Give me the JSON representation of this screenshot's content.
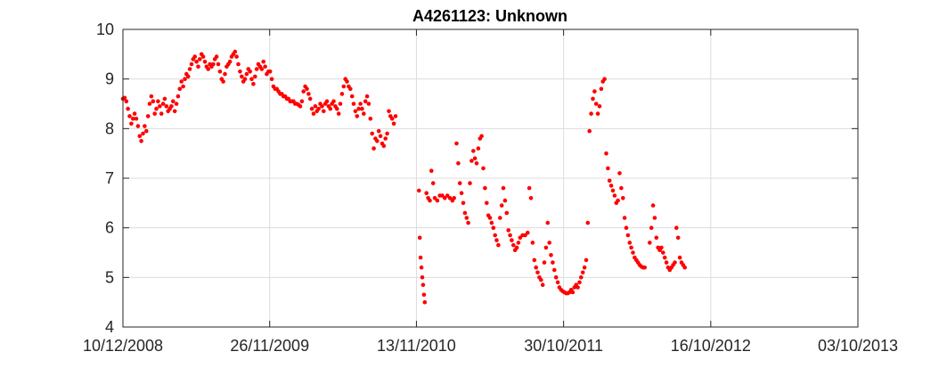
{
  "chart_data": {
    "type": "scatter",
    "title": "A4261123: Unknown",
    "xlabel": "",
    "ylabel": "",
    "x_tick_labels": [
      "10/12/2008",
      "26/11/2009",
      "13/11/2010",
      "30/10/2011",
      "16/10/2012",
      "03/10/2013"
    ],
    "xlim": [
      0,
      1758
    ],
    "x_ticks": [
      0,
      351,
      702,
      1054,
      1406,
      1758
    ],
    "x_units": "days since 10/12/2008",
    "ylim": [
      4,
      10
    ],
    "y_ticks": [
      4,
      5,
      6,
      7,
      8,
      9,
      10
    ],
    "y_tick_labels": [
      "4",
      "5",
      "6",
      "7",
      "8",
      "9",
      "10"
    ],
    "grid": true,
    "marker_color": "#ff0000",
    "series": [
      {
        "name": "A4261123",
        "points": [
          [
            0,
            8.6
          ],
          [
            4,
            8.62
          ],
          [
            8,
            8.55
          ],
          [
            12,
            8.4
          ],
          [
            16,
            8.25
          ],
          [
            20,
            8.1
          ],
          [
            24,
            8.2
          ],
          [
            28,
            8.3
          ],
          [
            32,
            8.2
          ],
          [
            36,
            8.05
          ],
          [
            40,
            7.85
          ],
          [
            44,
            7.75
          ],
          [
            48,
            7.9
          ],
          [
            52,
            8.05
          ],
          [
            56,
            7.95
          ],
          [
            60,
            8.25
          ],
          [
            64,
            8.5
          ],
          [
            68,
            8.65
          ],
          [
            72,
            8.55
          ],
          [
            76,
            8.3
          ],
          [
            80,
            8.4
          ],
          [
            84,
            8.55
          ],
          [
            88,
            8.45
          ],
          [
            92,
            8.3
          ],
          [
            96,
            8.5
          ],
          [
            100,
            8.6
          ],
          [
            104,
            8.45
          ],
          [
            108,
            8.35
          ],
          [
            112,
            8.4
          ],
          [
            116,
            8.45
          ],
          [
            120,
            8.55
          ],
          [
            124,
            8.35
          ],
          [
            128,
            8.5
          ],
          [
            132,
            8.65
          ],
          [
            136,
            8.8
          ],
          [
            140,
            8.95
          ],
          [
            144,
            8.85
          ],
          [
            148,
            9.0
          ],
          [
            152,
            9.1
          ],
          [
            156,
            9.05
          ],
          [
            160,
            9.2
          ],
          [
            164,
            9.3
          ],
          [
            168,
            9.4
          ],
          [
            172,
            9.45
          ],
          [
            176,
            9.35
          ],
          [
            180,
            9.25
          ],
          [
            184,
            9.4
          ],
          [
            188,
            9.5
          ],
          [
            192,
            9.45
          ],
          [
            196,
            9.35
          ],
          [
            200,
            9.25
          ],
          [
            204,
            9.2
          ],
          [
            208,
            9.3
          ],
          [
            212,
            9.25
          ],
          [
            216,
            9.3
          ],
          [
            220,
            9.4
          ],
          [
            224,
            9.45
          ],
          [
            228,
            9.3
          ],
          [
            232,
            9.15
          ],
          [
            236,
            9.0
          ],
          [
            240,
            8.95
          ],
          [
            244,
            9.1
          ],
          [
            248,
            9.25
          ],
          [
            252,
            9.3
          ],
          [
            256,
            9.35
          ],
          [
            260,
            9.45
          ],
          [
            264,
            9.5
          ],
          [
            268,
            9.55
          ],
          [
            272,
            9.45
          ],
          [
            276,
            9.3
          ],
          [
            280,
            9.15
          ],
          [
            284,
            9.05
          ],
          [
            288,
            8.95
          ],
          [
            292,
            9.0
          ],
          [
            296,
            9.1
          ],
          [
            300,
            9.2
          ],
          [
            304,
            9.15
          ],
          [
            308,
            9.0
          ],
          [
            312,
            8.9
          ],
          [
            316,
            9.05
          ],
          [
            320,
            9.2
          ],
          [
            324,
            9.3
          ],
          [
            328,
            9.25
          ],
          [
            332,
            9.2
          ],
          [
            336,
            9.35
          ],
          [
            340,
            9.25
          ],
          [
            344,
            9.1
          ],
          [
            348,
            9.15
          ],
          [
            352,
            9.15
          ],
          [
            356,
            9.0
          ],
          [
            360,
            8.85
          ],
          [
            364,
            8.8
          ],
          [
            368,
            8.8
          ],
          [
            372,
            8.75
          ],
          [
            376,
            8.7
          ],
          [
            380,
            8.7
          ],
          [
            384,
            8.65
          ],
          [
            388,
            8.65
          ],
          [
            392,
            8.6
          ],
          [
            396,
            8.6
          ],
          [
            400,
            8.55
          ],
          [
            404,
            8.55
          ],
          [
            408,
            8.55
          ],
          [
            412,
            8.5
          ],
          [
            416,
            8.5
          ],
          [
            420,
            8.48
          ],
          [
            424,
            8.45
          ],
          [
            428,
            8.55
          ],
          [
            432,
            8.75
          ],
          [
            436,
            8.85
          ],
          [
            440,
            8.8
          ],
          [
            444,
            8.7
          ],
          [
            448,
            8.6
          ],
          [
            452,
            8.4
          ],
          [
            456,
            8.3
          ],
          [
            460,
            8.45
          ],
          [
            464,
            8.35
          ],
          [
            468,
            8.4
          ],
          [
            472,
            8.5
          ],
          [
            476,
            8.45
          ],
          [
            480,
            8.35
          ],
          [
            484,
            8.5
          ],
          [
            488,
            8.55
          ],
          [
            492,
            8.45
          ],
          [
            496,
            8.4
          ],
          [
            500,
            8.5
          ],
          [
            504,
            8.55
          ],
          [
            508,
            8.45
          ],
          [
            512,
            8.4
          ],
          [
            516,
            8.3
          ],
          [
            520,
            8.5
          ],
          [
            524,
            8.7
          ],
          [
            528,
            8.85
          ],
          [
            532,
            9.0
          ],
          [
            536,
            8.95
          ],
          [
            540,
            8.85
          ],
          [
            544,
            8.8
          ],
          [
            548,
            8.65
          ],
          [
            552,
            8.5
          ],
          [
            556,
            8.35
          ],
          [
            560,
            8.25
          ],
          [
            564,
            8.4
          ],
          [
            568,
            8.5
          ],
          [
            572,
            8.4
          ],
          [
            576,
            8.3
          ],
          [
            580,
            8.55
          ],
          [
            584,
            8.65
          ],
          [
            588,
            8.5
          ],
          [
            592,
            8.2
          ],
          [
            596,
            7.9
          ],
          [
            600,
            7.6
          ],
          [
            604,
            7.8
          ],
          [
            608,
            7.75
          ],
          [
            612,
            7.95
          ],
          [
            616,
            7.85
          ],
          [
            620,
            7.7
          ],
          [
            624,
            7.65
          ],
          [
            628,
            7.8
          ],
          [
            632,
            7.9
          ],
          [
            636,
            8.35
          ],
          [
            640,
            8.25
          ],
          [
            644,
            8.2
          ],
          [
            648,
            8.1
          ],
          [
            652,
            8.25
          ],
          [
            708,
            6.75
          ],
          [
            710,
            5.8
          ],
          [
            712,
            5.4
          ],
          [
            714,
            5.2
          ],
          [
            716,
            5.0
          ],
          [
            718,
            4.85
          ],
          [
            720,
            4.65
          ],
          [
            722,
            4.5
          ],
          [
            726,
            6.7
          ],
          [
            730,
            6.6
          ],
          [
            734,
            6.55
          ],
          [
            738,
            7.15
          ],
          [
            742,
            6.9
          ],
          [
            746,
            6.6
          ],
          [
            752,
            6.55
          ],
          [
            758,
            6.65
          ],
          [
            764,
            6.65
          ],
          [
            770,
            6.6
          ],
          [
            776,
            6.65
          ],
          [
            782,
            6.6
          ],
          [
            788,
            6.55
          ],
          [
            792,
            6.6
          ],
          [
            798,
            7.7
          ],
          [
            802,
            7.3
          ],
          [
            806,
            6.9
          ],
          [
            810,
            6.7
          ],
          [
            814,
            6.5
          ],
          [
            818,
            6.3
          ],
          [
            822,
            6.2
          ],
          [
            826,
            6.1
          ],
          [
            830,
            6.9
          ],
          [
            834,
            7.35
          ],
          [
            838,
            7.55
          ],
          [
            842,
            7.4
          ],
          [
            846,
            7.3
          ],
          [
            850,
            7.6
          ],
          [
            854,
            7.8
          ],
          [
            858,
            7.85
          ],
          [
            862,
            7.2
          ],
          [
            866,
            6.8
          ],
          [
            870,
            6.5
          ],
          [
            874,
            6.25
          ],
          [
            878,
            6.2
          ],
          [
            882,
            6.1
          ],
          [
            886,
            6.0
          ],
          [
            890,
            5.85
          ],
          [
            894,
            5.75
          ],
          [
            898,
            5.65
          ],
          [
            902,
            6.2
          ],
          [
            906,
            6.45
          ],
          [
            910,
            6.8
          ],
          [
            914,
            6.55
          ],
          [
            918,
            6.3
          ],
          [
            922,
            5.95
          ],
          [
            926,
            5.85
          ],
          [
            930,
            5.75
          ],
          [
            934,
            5.65
          ],
          [
            938,
            5.55
          ],
          [
            942,
            5.6
          ],
          [
            946,
            5.7
          ],
          [
            950,
            5.8
          ],
          [
            956,
            5.85
          ],
          [
            962,
            5.85
          ],
          [
            968,
            5.9
          ],
          [
            972,
            6.8
          ],
          [
            976,
            6.6
          ],
          [
            980,
            5.7
          ],
          [
            984,
            5.35
          ],
          [
            988,
            5.2
          ],
          [
            992,
            5.1
          ],
          [
            996,
            5.0
          ],
          [
            1000,
            4.95
          ],
          [
            1004,
            4.85
          ],
          [
            1008,
            5.3
          ],
          [
            1012,
            5.6
          ],
          [
            1016,
            6.1
          ],
          [
            1020,
            5.7
          ],
          [
            1024,
            5.45
          ],
          [
            1028,
            5.3
          ],
          [
            1032,
            5.15
          ],
          [
            1036,
            5.0
          ],
          [
            1040,
            4.9
          ],
          [
            1044,
            4.8
          ],
          [
            1048,
            4.75
          ],
          [
            1052,
            4.72
          ],
          [
            1056,
            4.7
          ],
          [
            1060,
            4.68
          ],
          [
            1064,
            4.68
          ],
          [
            1068,
            4.7
          ],
          [
            1072,
            4.75
          ],
          [
            1076,
            4.7
          ],
          [
            1080,
            4.8
          ],
          [
            1084,
            4.85
          ],
          [
            1088,
            4.8
          ],
          [
            1092,
            4.9
          ],
          [
            1096,
            5.0
          ],
          [
            1100,
            5.1
          ],
          [
            1104,
            5.2
          ],
          [
            1108,
            5.35
          ],
          [
            1112,
            6.1
          ],
          [
            1116,
            7.95
          ],
          [
            1120,
            8.3
          ],
          [
            1124,
            8.6
          ],
          [
            1128,
            8.75
          ],
          [
            1132,
            8.5
          ],
          [
            1136,
            8.3
          ],
          [
            1140,
            8.45
          ],
          [
            1144,
            8.8
          ],
          [
            1148,
            8.95
          ],
          [
            1152,
            9.0
          ],
          [
            1156,
            7.5
          ],
          [
            1160,
            7.2
          ],
          [
            1164,
            6.95
          ],
          [
            1168,
            6.85
          ],
          [
            1172,
            6.75
          ],
          [
            1176,
            6.65
          ],
          [
            1180,
            6.5
          ],
          [
            1184,
            6.55
          ],
          [
            1188,
            7.1
          ],
          [
            1192,
            6.8
          ],
          [
            1196,
            6.6
          ],
          [
            1200,
            6.2
          ],
          [
            1204,
            6.0
          ],
          [
            1208,
            5.85
          ],
          [
            1212,
            5.7
          ],
          [
            1216,
            5.6
          ],
          [
            1220,
            5.5
          ],
          [
            1224,
            5.4
          ],
          [
            1228,
            5.35
          ],
          [
            1232,
            5.3
          ],
          [
            1236,
            5.25
          ],
          [
            1240,
            5.22
          ],
          [
            1244,
            5.2
          ],
          [
            1248,
            5.2
          ],
          [
            1260,
            5.7
          ],
          [
            1264,
            6.0
          ],
          [
            1268,
            6.45
          ],
          [
            1272,
            6.2
          ],
          [
            1276,
            5.8
          ],
          [
            1280,
            5.6
          ],
          [
            1284,
            5.55
          ],
          [
            1288,
            5.6
          ],
          [
            1292,
            5.5
          ],
          [
            1296,
            5.4
          ],
          [
            1300,
            5.3
          ],
          [
            1304,
            5.2
          ],
          [
            1308,
            5.15
          ],
          [
            1312,
            5.2
          ],
          [
            1316,
            5.25
          ],
          [
            1320,
            5.3
          ],
          [
            1324,
            6.0
          ],
          [
            1328,
            5.8
          ],
          [
            1332,
            5.4
          ],
          [
            1336,
            5.3
          ],
          [
            1340,
            5.25
          ],
          [
            1344,
            5.2
          ]
        ]
      }
    ]
  }
}
